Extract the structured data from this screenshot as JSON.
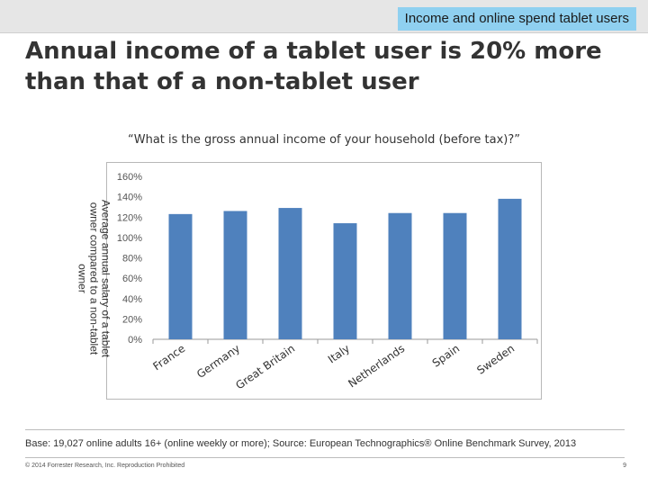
{
  "header": {
    "section_tag": "Income and online spend tablet users"
  },
  "slide": {
    "title": "Annual income of a tablet user is 20% more than that of a non-tablet user",
    "question": "“What is the gross annual income of your household (before tax)?”"
  },
  "chart_data": {
    "type": "bar",
    "title": "",
    "xlabel": "",
    "ylabel": "Average annual salary of a tablet owner compared to a non-tablet owner",
    "categories": [
      "France",
      "Germany",
      "Great Britain",
      "Italy",
      "Netherlands",
      "Spain",
      "Sweden"
    ],
    "values": [
      123,
      126,
      129,
      114,
      124,
      124,
      138
    ],
    "yticks": [
      "0%",
      "20%",
      "40%",
      "60%",
      "80%",
      "100%",
      "120%",
      "140%",
      "160%"
    ],
    "ylim": [
      0,
      160
    ],
    "grid": false,
    "legend": "none",
    "bar_color": "#4f81bd"
  },
  "footer": {
    "base_note": "Base: 19,027 online adults 16+ (online weekly or more); Source: European Technographics® Online Benchmark Survey, 2013",
    "copyright": "© 2014 Forrester Research, Inc. Reproduction Prohibited",
    "page_number": "9"
  }
}
